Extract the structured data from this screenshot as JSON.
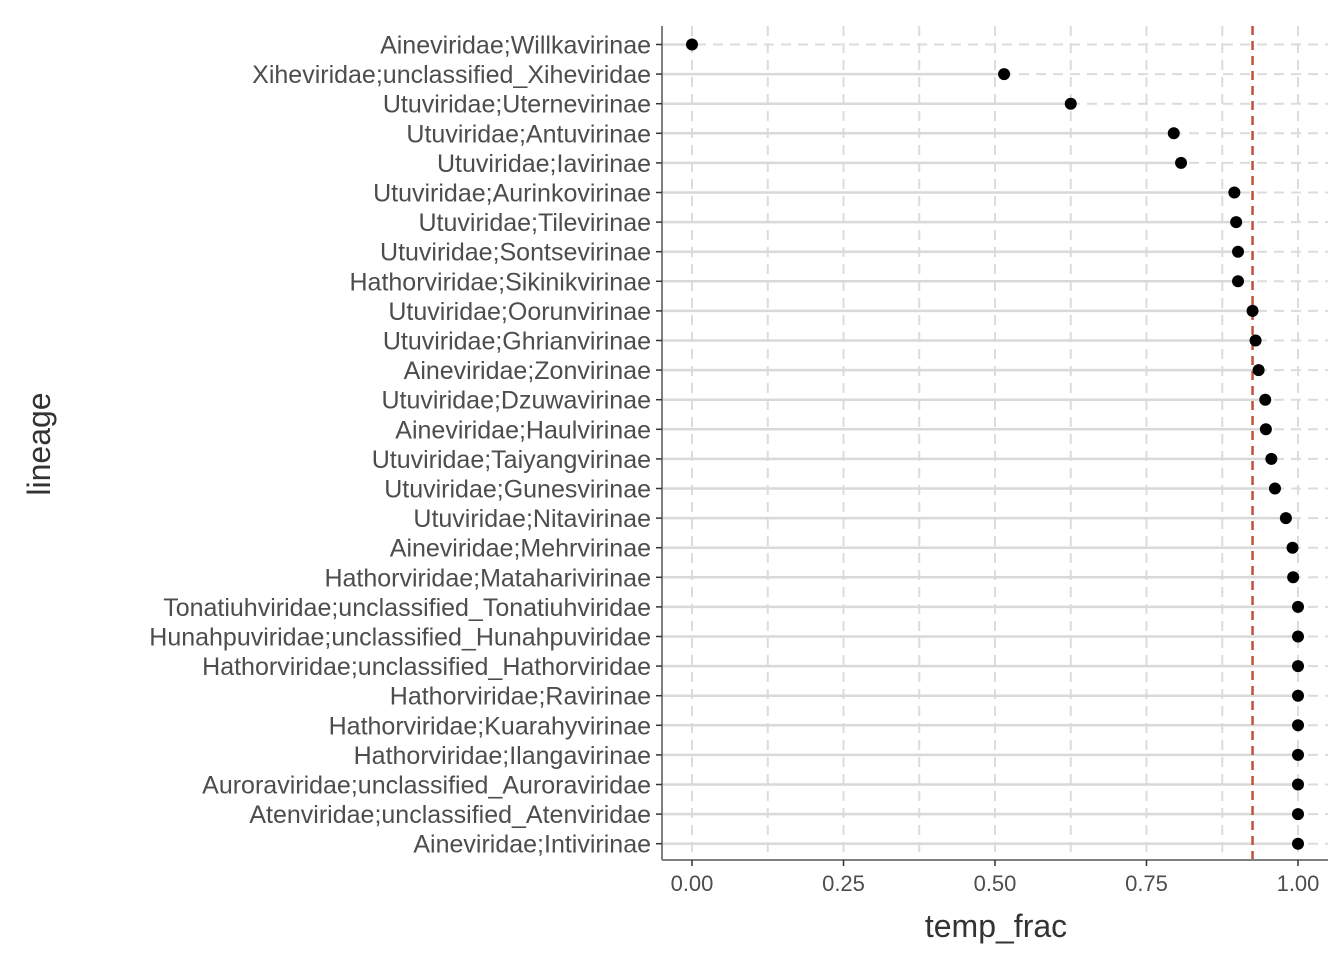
{
  "chart_data": {
    "type": "lollipop",
    "xlabel": "temp_frac",
    "ylabel": "lineage",
    "xlim": [
      -0.05,
      1.05
    ],
    "xticks": [
      0,
      0.25,
      0.5,
      0.75,
      1
    ],
    "xtick_labels": [
      "0.00",
      "0.25",
      "0.50",
      "0.75",
      "1.00"
    ],
    "grid": "dashed vertical major and minor lines",
    "reference_line": {
      "x": 0.925,
      "style": "dashed",
      "color": "#c0513a"
    },
    "colors": {
      "point": "#000000",
      "stem": "#d9d9d9",
      "grid": "#dcdcdc",
      "axis": "#7f7f7f"
    },
    "categories": [
      "Aineviridae;Willkavirinae",
      "Xiheviridae;unclassified_Xiheviridae",
      "Utuviridae;Uternevirinae",
      "Utuviridae;Antuvirinae",
      "Utuviridae;Iavirinae",
      "Utuviridae;Aurinkovirinae",
      "Utuviridae;Tilevirinae",
      "Utuviridae;Sontsevirinae",
      "Hathorviridae;Sikinikvirinae",
      "Utuviridae;Oorunvirinae",
      "Utuviridae;Ghrianvirinae",
      "Aineviridae;Zonvirinae",
      "Utuviridae;Dzuwavirinae",
      "Aineviridae;Haulvirinae",
      "Utuviridae;Taiyangvirinae",
      "Utuviridae;Gunesvirinae",
      "Utuviridae;Nitavirinae",
      "Aineviridae;Mehrvirinae",
      "Hathorviridae;Mataharivirinae",
      "Tonatiuhviridae;unclassified_Tonatiuhviridae",
      "Hunahpuviridae;unclassified_Hunahpuviridae",
      "Hathorviridae;unclassified_Hathorviridae",
      "Hathorviridae;Ravirinae",
      "Hathorviridae;Kuarahyvirinae",
      "Hathorviridae;Ilangavirinae",
      "Auroraviridae;unclassified_Auroraviridae",
      "Atenviridae;unclassified_Atenviridae",
      "Aineviridae;Intivirinae"
    ],
    "values": [
      0.0,
      0.515,
      0.625,
      0.795,
      0.807,
      0.895,
      0.898,
      0.901,
      0.901,
      0.925,
      0.93,
      0.935,
      0.946,
      0.947,
      0.956,
      0.962,
      0.98,
      0.991,
      0.992,
      1.0,
      1.0,
      1.0,
      1.0,
      1.0,
      1.0,
      1.0,
      1.0,
      1.0
    ]
  }
}
